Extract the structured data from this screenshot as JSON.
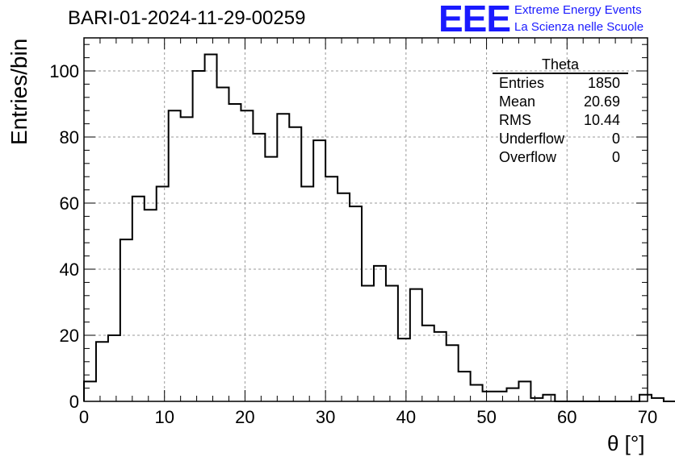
{
  "title": "BARI-01-2024-11-29-00259",
  "logo": {
    "mark": "EEE",
    "line1": "Extreme Energy Events",
    "line2": "La Scienza nelle Scuole"
  },
  "stats": {
    "name": "Theta",
    "rows": [
      {
        "label": "Entries",
        "value": "1850"
      },
      {
        "label": "Mean",
        "value": "20.69"
      },
      {
        "label": "RMS",
        "value": "10.44"
      },
      {
        "label": "Underflow",
        "value": "0"
      },
      {
        "label": "Overflow",
        "value": "0"
      }
    ]
  },
  "chart_data": {
    "type": "bar",
    "histogram": true,
    "bin_width": 1.5,
    "x_start": 0,
    "values": [
      6,
      18,
      20,
      49,
      62,
      58,
      65,
      88,
      86,
      100,
      105,
      95,
      90,
      88,
      81,
      74,
      87,
      83,
      65,
      79,
      68,
      63,
      59,
      35,
      41,
      35,
      19,
      34,
      23,
      21,
      17,
      9,
      5,
      3,
      3,
      4,
      6,
      1,
      2,
      0,
      0,
      0,
      0,
      0,
      0,
      0,
      2,
      1,
      0
    ],
    "xlabel": "θ [°]",
    "ylabel": "Entries/bin",
    "xlim": [
      0,
      70
    ],
    "ylim": [
      0,
      110
    ],
    "xticks": [
      0,
      10,
      20,
      30,
      40,
      50,
      60,
      70
    ],
    "yticks": [
      0,
      20,
      40,
      60,
      80,
      100
    ],
    "grid": true,
    "line_color": "#000000"
  }
}
